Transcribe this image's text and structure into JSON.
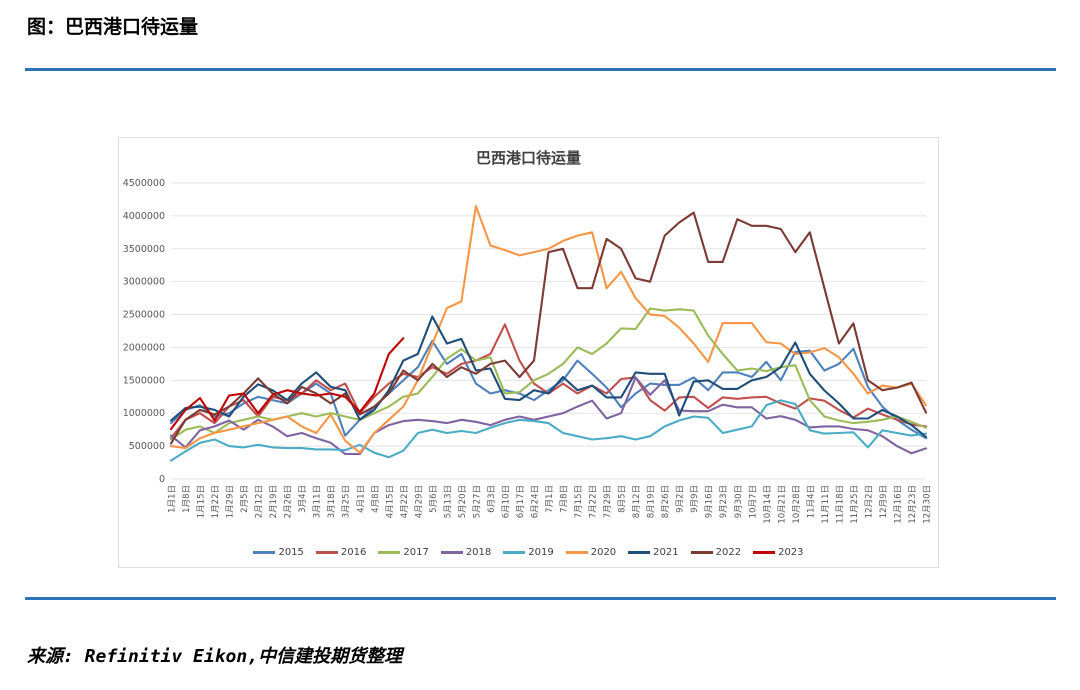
{
  "page": {
    "title": "图：巴西港口待运量",
    "source": "来源: Refinitiv Eikon,中信建投期货整理",
    "divider_color": "#2E75B6"
  },
  "chart_data": {
    "type": "line",
    "title": "巴西港口待运量",
    "xlabel": "",
    "ylabel": "",
    "ylim": [
      0,
      4500000
    ],
    "ytick_step": 500000,
    "grid": true,
    "legend_position": "bottom",
    "categories": [
      "1月1日",
      "1月8日",
      "1月15日",
      "1月22日",
      "1月29日",
      "2月5日",
      "2月12日",
      "2月19日",
      "2月26日",
      "3月4日",
      "3月11日",
      "3月18日",
      "3月25日",
      "4月1日",
      "4月8日",
      "4月15日",
      "4月22日",
      "4月29日",
      "5月6日",
      "5月13日",
      "5月20日",
      "5月27日",
      "6月3日",
      "6月10日",
      "6月17日",
      "6月24日",
      "7月1日",
      "7月8日",
      "7月15日",
      "7月22日",
      "7月29日",
      "8月5日",
      "8月12日",
      "8月19日",
      "8月26日",
      "9月2日",
      "9月9日",
      "9月16日",
      "9月23日",
      "9月30日",
      "10月7日",
      "10月14日",
      "10月21日",
      "10月28日",
      "11月4日",
      "11月11日",
      "11月18日",
      "11月25日",
      "12月2日",
      "12月9日",
      "12月16日",
      "12月23日",
      "12月30日"
    ],
    "series": [
      {
        "name": "2015",
        "color": "#4F81BD",
        "values": [
          850000,
          1050000,
          1120000,
          950000,
          1000000,
          1150000,
          1250000,
          1200000,
          1150000,
          1300000,
          1450000,
          1300000,
          660000,
          900000,
          1100000,
          1300000,
          1500000,
          1700000,
          2100000,
          1750000,
          1900000,
          1450000,
          1300000,
          1350000,
          1300000,
          1200000,
          1350000,
          1500000,
          1800000,
          1600000,
          1390000,
          1090000,
          1300000,
          1450000,
          1430000,
          1430000,
          1545000,
          1350000,
          1620000,
          1620000,
          1550000,
          1780000,
          1500000,
          1930000,
          1950000,
          1650000,
          1750000,
          1980000,
          1400000,
          1100000,
          900000,
          750000,
          620000
        ]
      },
      {
        "name": "2016",
        "color": "#C0504D",
        "values": [
          620000,
          900000,
          1000000,
          850000,
          1100000,
          1200000,
          950000,
          1250000,
          1200000,
          1300000,
          1500000,
          1350000,
          1450000,
          1000000,
          1250000,
          1450000,
          1600000,
          1550000,
          1700000,
          1600000,
          1750000,
          1800000,
          1900000,
          2350000,
          1800000,
          1450000,
          1300000,
          1450000,
          1300000,
          1420000,
          1300000,
          1520000,
          1545000,
          1200000,
          1040000,
          1240000,
          1250000,
          1080000,
          1240000,
          1220000,
          1240000,
          1250000,
          1150000,
          1070000,
          1225000,
          1190000,
          1050000,
          935000,
          1070000,
          980000,
          900000,
          830000,
          800000
        ]
      },
      {
        "name": "2017",
        "color": "#9BBB59",
        "values": [
          600000,
          750000,
          800000,
          700000,
          850000,
          900000,
          950000,
          900000,
          950000,
          1000000,
          950000,
          1000000,
          950000,
          900000,
          1000000,
          1100000,
          1250000,
          1300000,
          1550000,
          1830000,
          1975000,
          1800000,
          1850000,
          1300000,
          1320000,
          1500000,
          1600000,
          1750000,
          2000000,
          1900000,
          2060000,
          2290000,
          2280000,
          2590000,
          2560000,
          2580000,
          2560000,
          2180000,
          1900000,
          1650000,
          1680000,
          1640000,
          1700000,
          1730000,
          1200000,
          950000,
          890000,
          850000,
          870000,
          900000,
          950000,
          870000,
          780000
        ]
      },
      {
        "name": "2018",
        "color": "#8064A2",
        "values": [
          660000,
          480000,
          740000,
          800000,
          890000,
          750000,
          900000,
          800000,
          650000,
          700000,
          620000,
          550000,
          380000,
          380000,
          700000,
          820000,
          880000,
          900000,
          880000,
          850000,
          900000,
          870000,
          820000,
          900000,
          950000,
          900000,
          950000,
          1000000,
          1100000,
          1190000,
          920000,
          1000000,
          1545000,
          1280000,
          1500000,
          1040000,
          1030000,
          1030000,
          1130000,
          1090000,
          1090000,
          920000,
          955000,
          900000,
          785000,
          800000,
          800000,
          760000,
          740000,
          650000,
          500000,
          390000,
          465000
        ]
      },
      {
        "name": "2019",
        "color": "#4BACC6",
        "values": [
          280000,
          420000,
          550000,
          600000,
          500000,
          480000,
          520000,
          480000,
          470000,
          470000,
          450000,
          450000,
          440000,
          520000,
          400000,
          330000,
          430000,
          700000,
          750000,
          700000,
          730000,
          700000,
          780000,
          850000,
          900000,
          880000,
          850000,
          700000,
          650000,
          600000,
          620000,
          650000,
          600000,
          650000,
          800000,
          890000,
          950000,
          930000,
          700000,
          750000,
          800000,
          1120000,
          1195000,
          1140000,
          740000,
          690000,
          700000,
          710000,
          480000,
          740000,
          700000,
          660000,
          690000
        ]
      },
      {
        "name": "2020",
        "color": "#F79646",
        "values": [
          500000,
          470000,
          620000,
          700000,
          750000,
          800000,
          850000,
          900000,
          950000,
          800000,
          700000,
          980000,
          580000,
          400000,
          700000,
          900000,
          1100000,
          1500000,
          2050000,
          2600000,
          2700000,
          4150000,
          3550000,
          3480000,
          3400000,
          3450000,
          3500000,
          3620000,
          3700000,
          3750000,
          2900000,
          3150000,
          2750000,
          2500000,
          2480000,
          2300000,
          2060000,
          1780000,
          2370000,
          2370000,
          2370000,
          2080000,
          2060000,
          1900000,
          1925000,
          1990000,
          1850000,
          1600000,
          1300000,
          1420000,
          1390000,
          1450000,
          1120000
        ]
      },
      {
        "name": "2021",
        "color": "#1F4E79",
        "values": [
          890000,
          1080000,
          1100000,
          1050000,
          950000,
          1250000,
          1440000,
          1350000,
          1200000,
          1450000,
          1620000,
          1400000,
          1350000,
          900000,
          1050000,
          1350000,
          1800000,
          1900000,
          2470000,
          2060000,
          2130000,
          1650000,
          1680000,
          1220000,
          1200000,
          1350000,
          1300000,
          1550000,
          1350000,
          1420000,
          1240000,
          1240000,
          1620000,
          1600000,
          1600000,
          965000,
          1480000,
          1500000,
          1370000,
          1370000,
          1500000,
          1550000,
          1700000,
          2075000,
          1600000,
          1345000,
          1150000,
          920000,
          920000,
          1050000,
          950000,
          820000,
          640000
        ]
      },
      {
        "name": "2022",
        "color": "#7B3A34",
        "values": [
          540000,
          900000,
          1050000,
          980000,
          1100000,
          1300000,
          1530000,
          1300000,
          1150000,
          1400000,
          1300000,
          1150000,
          1300000,
          980000,
          1100000,
          1300000,
          1650000,
          1500000,
          1750000,
          1550000,
          1700000,
          1600000,
          1750000,
          1800000,
          1550000,
          1800000,
          3450000,
          3500000,
          2900000,
          2900000,
          3650000,
          3500000,
          3050000,
          3000000,
          3700000,
          3900000,
          4050000,
          3300000,
          3300000,
          3950000,
          3850000,
          3850000,
          3800000,
          3450000,
          3750000,
          2900000,
          2060000,
          2365000,
          1500000,
          1350000,
          1390000,
          1465000,
          1010000
        ]
      },
      {
        "name": "2023",
        "color": "#C00000",
        "values": [
          760000,
          1050000,
          1230000,
          890000,
          1270000,
          1300000,
          1000000,
          1280000,
          1350000,
          1300000,
          1270000,
          1300000,
          1250000,
          1020000,
          1300000,
          1900000,
          2140000
        ]
      }
    ]
  }
}
